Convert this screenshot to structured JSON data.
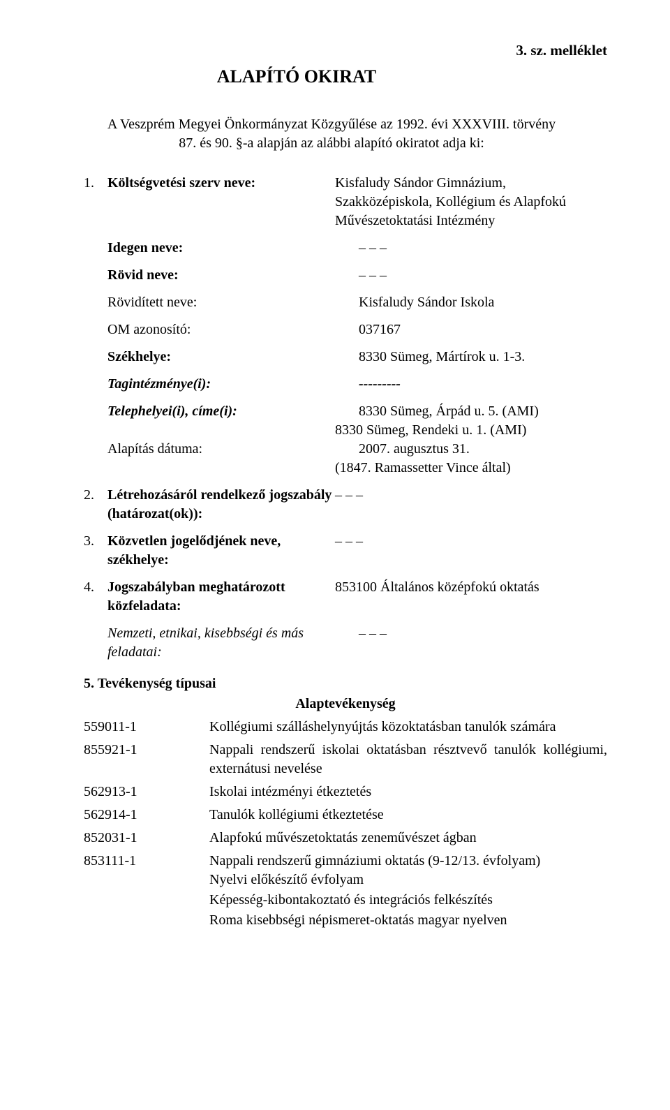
{
  "annex": "3. sz. melléklet",
  "title": "ALAPÍTÓ OKIRAT",
  "intro_line1": "A Veszprém Megyei Önkormányzat Közgyűlése az 1992. évi XXXVIII. törvény",
  "intro_line2": "87. és 90. §-a alapján az alábbi alapító okiratot adja ki:",
  "item1": {
    "num": "1.",
    "label": "Költségvetési szerv neve:",
    "value_l1": "Kisfaludy Sándor Gimnázium,",
    "value_l2": "Szakközépiskola, Kollégium és Alapfokú",
    "value_l3": "Művészetoktatási Intézmény"
  },
  "idegen": {
    "label": "Idegen neve:",
    "value": "– – –"
  },
  "rovid": {
    "label": "Rövid neve:",
    "value": "– – –"
  },
  "rovidit": {
    "label": "Rövidített neve:",
    "value": "Kisfaludy Sándor Iskola"
  },
  "om": {
    "label": "OM azonosító:",
    "value": "037167"
  },
  "szekhely": {
    "label": "Székhelye:",
    "value": "8330 Sümeg, Mártírok u. 1-3."
  },
  "tagint": {
    "label": "Tagintézménye(i):",
    "value": "---------"
  },
  "telep": {
    "label": "Telephelyei(i), címe(i):",
    "v1": "8330 Sümeg, Árpád u. 5. (AMI)",
    "v2": "8330 Sümeg, Rendeki u. 1. (AMI)"
  },
  "alapitas": {
    "label": "Alapítás dátuma:",
    "v1": "2007. augusztus 31.",
    "v2": "(1847. Ramassetter Vince által)"
  },
  "item2": {
    "num": "2.",
    "label_l1": "Létrehozásáról rendelkező jogszabály",
    "label_l2": "(határozat(ok)):",
    "value": "– – –"
  },
  "item3": {
    "num": "3.",
    "label_l1": "Közvetlen jogelődjének neve,",
    "label_l2": "székhelye:",
    "value": "– – –"
  },
  "item4": {
    "num": "4.",
    "label_l1": "Jogszabályban meghatározott",
    "label_l2": "közfeladata:",
    "value": "853100 Általános középfokú oktatás"
  },
  "nemzeti": {
    "label_l1": "Nemzeti, etnikai, kisebbségi és más",
    "label_l2": "feladatai:",
    "value": "– – –"
  },
  "item5": {
    "label": "5. Tevékenység típusai"
  },
  "alaptev": "Alaptevékenység",
  "acts": [
    {
      "code": "559011-1",
      "desc": "Kollégiumi szálláshelynyújtás közoktatásban tanulók számára"
    },
    {
      "code": "855921-1",
      "desc": "Nappali rendszerű iskolai oktatásban résztvevő tanulók kollégiumi, externátusi nevelése"
    },
    {
      "code": "562913-1",
      "desc": "Iskolai intézményi étkeztetés"
    },
    {
      "code": "562914-1",
      "desc": "Tanulók kollégiumi étkeztetése"
    },
    {
      "code": "852031-1",
      "desc": "Alapfokú művészetoktatás zeneművészet ágban"
    },
    {
      "code": "853111-1",
      "desc": "Nappali rendszerű gimnáziumi oktatás (9-12/13. évfolyam)",
      "extra": [
        "Nyelvi előkészítő évfolyam",
        "Képesség-kibontakoztató és integrációs felkészítés",
        "Roma kisebbségi népismeret-oktatás magyar nyelven"
      ]
    }
  ]
}
